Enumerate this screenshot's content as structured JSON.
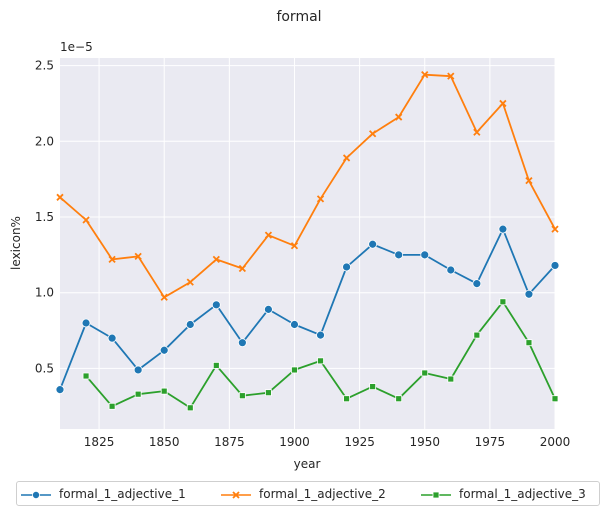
{
  "chart_data": {
    "type": "line",
    "title": "formal",
    "xlabel": "year",
    "ylabel": "lexicon%",
    "y_multiplier_label": "1e−5",
    "xlim": [
      1810,
      2000
    ],
    "ylim": [
      0.1,
      2.55
    ],
    "x_ticks": [
      1825,
      1850,
      1875,
      1900,
      1925,
      1950,
      1975,
      2000
    ],
    "y_ticks": [
      0.5,
      1.0,
      1.5,
      2.0,
      2.5
    ],
    "x_tick_labels": [
      "1825",
      "1850",
      "1875",
      "1900",
      "1925",
      "1950",
      "1975",
      "2000"
    ],
    "y_tick_labels": [
      "0.5",
      "1.0",
      "1.5",
      "2.0",
      "2.5"
    ],
    "grid": true,
    "legend_placement": "bottom",
    "background": "#eaeaf2",
    "series": [
      {
        "name": "formal_1_adjective_1",
        "color": "#1f77b4",
        "marker": "circle",
        "x": [
          1810,
          1820,
          1830,
          1840,
          1850,
          1860,
          1870,
          1880,
          1890,
          1900,
          1910,
          1920,
          1930,
          1940,
          1950,
          1960,
          1970,
          1980,
          1990,
          2000
        ],
        "y": [
          0.36,
          0.8,
          0.7,
          0.49,
          0.62,
          0.79,
          0.92,
          0.67,
          0.89,
          0.79,
          0.72,
          1.17,
          1.32,
          1.25,
          1.25,
          1.15,
          1.06,
          1.42,
          0.99,
          1.18
        ]
      },
      {
        "name": "formal_1_adjective_2",
        "color": "#ff7f0e",
        "marker": "x",
        "x": [
          1810,
          1820,
          1830,
          1840,
          1850,
          1860,
          1870,
          1880,
          1890,
          1900,
          1910,
          1920,
          1930,
          1940,
          1950,
          1960,
          1970,
          1980,
          1990,
          2000
        ],
        "y": [
          1.63,
          1.48,
          1.22,
          1.24,
          0.97,
          1.07,
          1.22,
          1.16,
          1.38,
          1.31,
          1.62,
          1.89,
          2.05,
          2.16,
          2.44,
          2.43,
          2.06,
          2.25,
          1.74,
          1.42
        ]
      },
      {
        "name": "formal_1_adjective_3",
        "color": "#2ca02c",
        "marker": "square",
        "x": [
          1820,
          1830,
          1840,
          1850,
          1860,
          1870,
          1880,
          1890,
          1900,
          1910,
          1920,
          1930,
          1940,
          1950,
          1960,
          1970,
          1980,
          1990,
          2000
        ],
        "y": [
          0.45,
          0.25,
          0.33,
          0.35,
          0.24,
          0.52,
          0.32,
          0.34,
          0.49,
          0.55,
          0.3,
          0.38,
          0.3,
          0.47,
          0.43,
          0.72,
          0.94,
          0.67,
          0.3
        ]
      }
    ]
  }
}
